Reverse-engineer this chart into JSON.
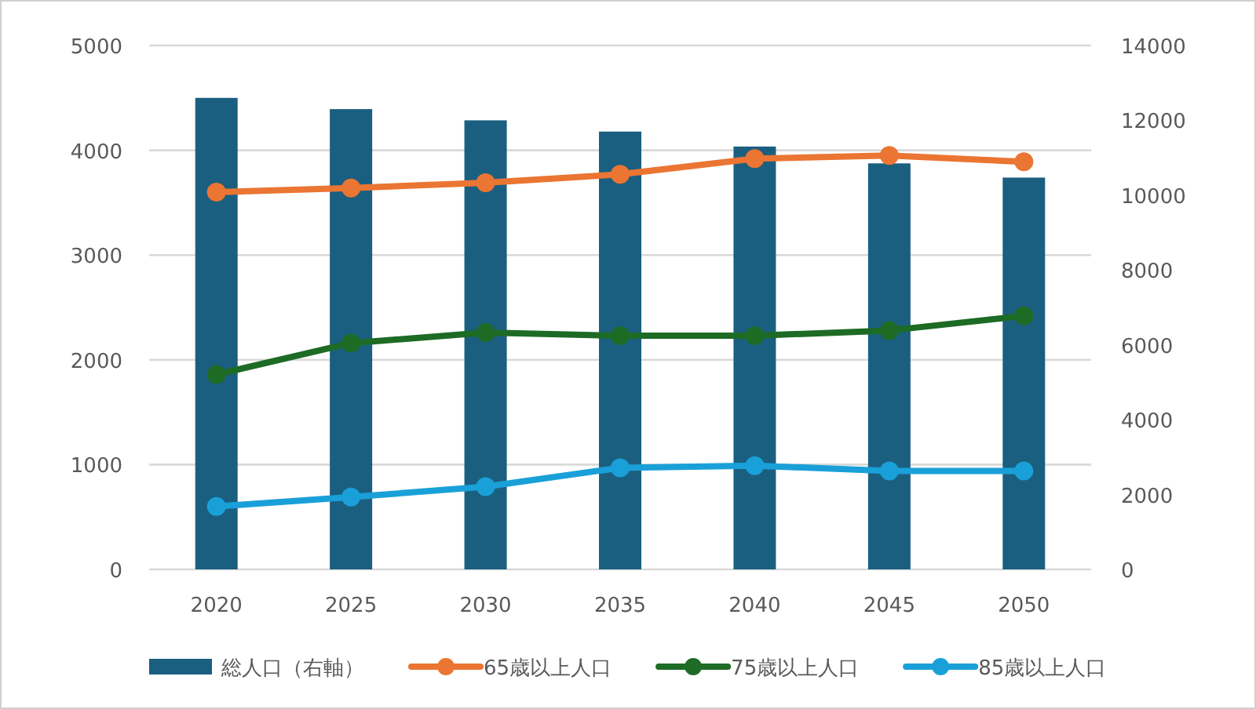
{
  "chart_data": {
    "type": "bar",
    "categories": [
      "2020",
      "2025",
      "2030",
      "2035",
      "2040",
      "2045",
      "2050"
    ],
    "series": [
      {
        "name": "総人口（右軸）",
        "axis": "y2",
        "color": "#1b5f80",
        "values": [
          12600,
          12300,
          12000,
          11700,
          11300,
          10850,
          10470
        ]
      },
      {
        "name": "65歳以上人口",
        "type": "line",
        "color": "#eb7532",
        "marker": "circle",
        "values": [
          3600,
          3640,
          3690,
          3770,
          3920,
          3950,
          3890
        ]
      },
      {
        "name": "75歳以上人口",
        "type": "line",
        "color": "#1d6b25",
        "marker": "circle",
        "values": [
          1860,
          2160,
          2260,
          2230,
          2230,
          2280,
          2420
        ]
      },
      {
        "name": "85歳以上人口",
        "type": "line",
        "color": "#1aa0d8",
        "marker": "circle",
        "values": [
          600,
          690,
          790,
          970,
          990,
          940,
          940
        ]
      }
    ],
    "ylim": [
      0,
      5000
    ],
    "yticks": [
      0,
      1000,
      2000,
      3000,
      4000,
      5000
    ],
    "y2lim": [
      0,
      14000
    ],
    "y2ticks": [
      0,
      2000,
      4000,
      6000,
      8000,
      10000,
      12000,
      14000
    ],
    "grid": "y",
    "legend": "bottom"
  }
}
